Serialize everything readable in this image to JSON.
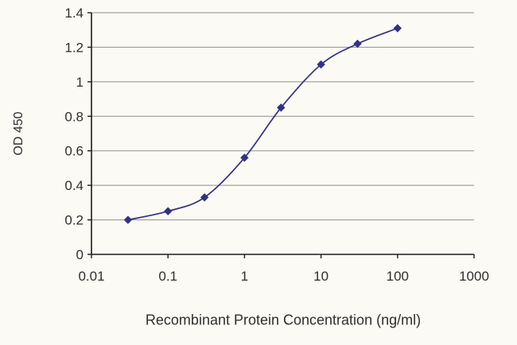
{
  "chart_data": {
    "type": "line",
    "title": "",
    "xlabel": "Recombinant Protein Concentration (ng/ml)",
    "ylabel": "OD 450",
    "x_scale": "log",
    "x": [
      0.03,
      0.1,
      0.3,
      1,
      3,
      10,
      30,
      100
    ],
    "y": [
      0.2,
      0.25,
      0.33,
      0.56,
      0.85,
      1.1,
      1.22,
      1.31
    ],
    "xlim": [
      0.01,
      1000
    ],
    "ylim": [
      0,
      1.4
    ],
    "x_ticks": [
      0.01,
      0.1,
      1,
      10,
      100,
      1000
    ],
    "x_tick_labels": [
      "0.01",
      "0.1",
      "1",
      "10",
      "100",
      "1000"
    ],
    "y_ticks": [
      0,
      0.2,
      0.4,
      0.6,
      0.8,
      1,
      1.2,
      1.4
    ],
    "y_tick_labels": [
      "0",
      "0.2",
      "0.4",
      "0.6",
      "0.8",
      "1",
      "1.2",
      "1.4"
    ],
    "grid": "horizontal",
    "legend": "none",
    "marker": "diamond",
    "series_color": "#32327e"
  },
  "colors": {
    "background": "#fcfaf4",
    "grid": "#8f8f8f",
    "axis": "#1c1c1c",
    "text": "#2e2e2e"
  }
}
